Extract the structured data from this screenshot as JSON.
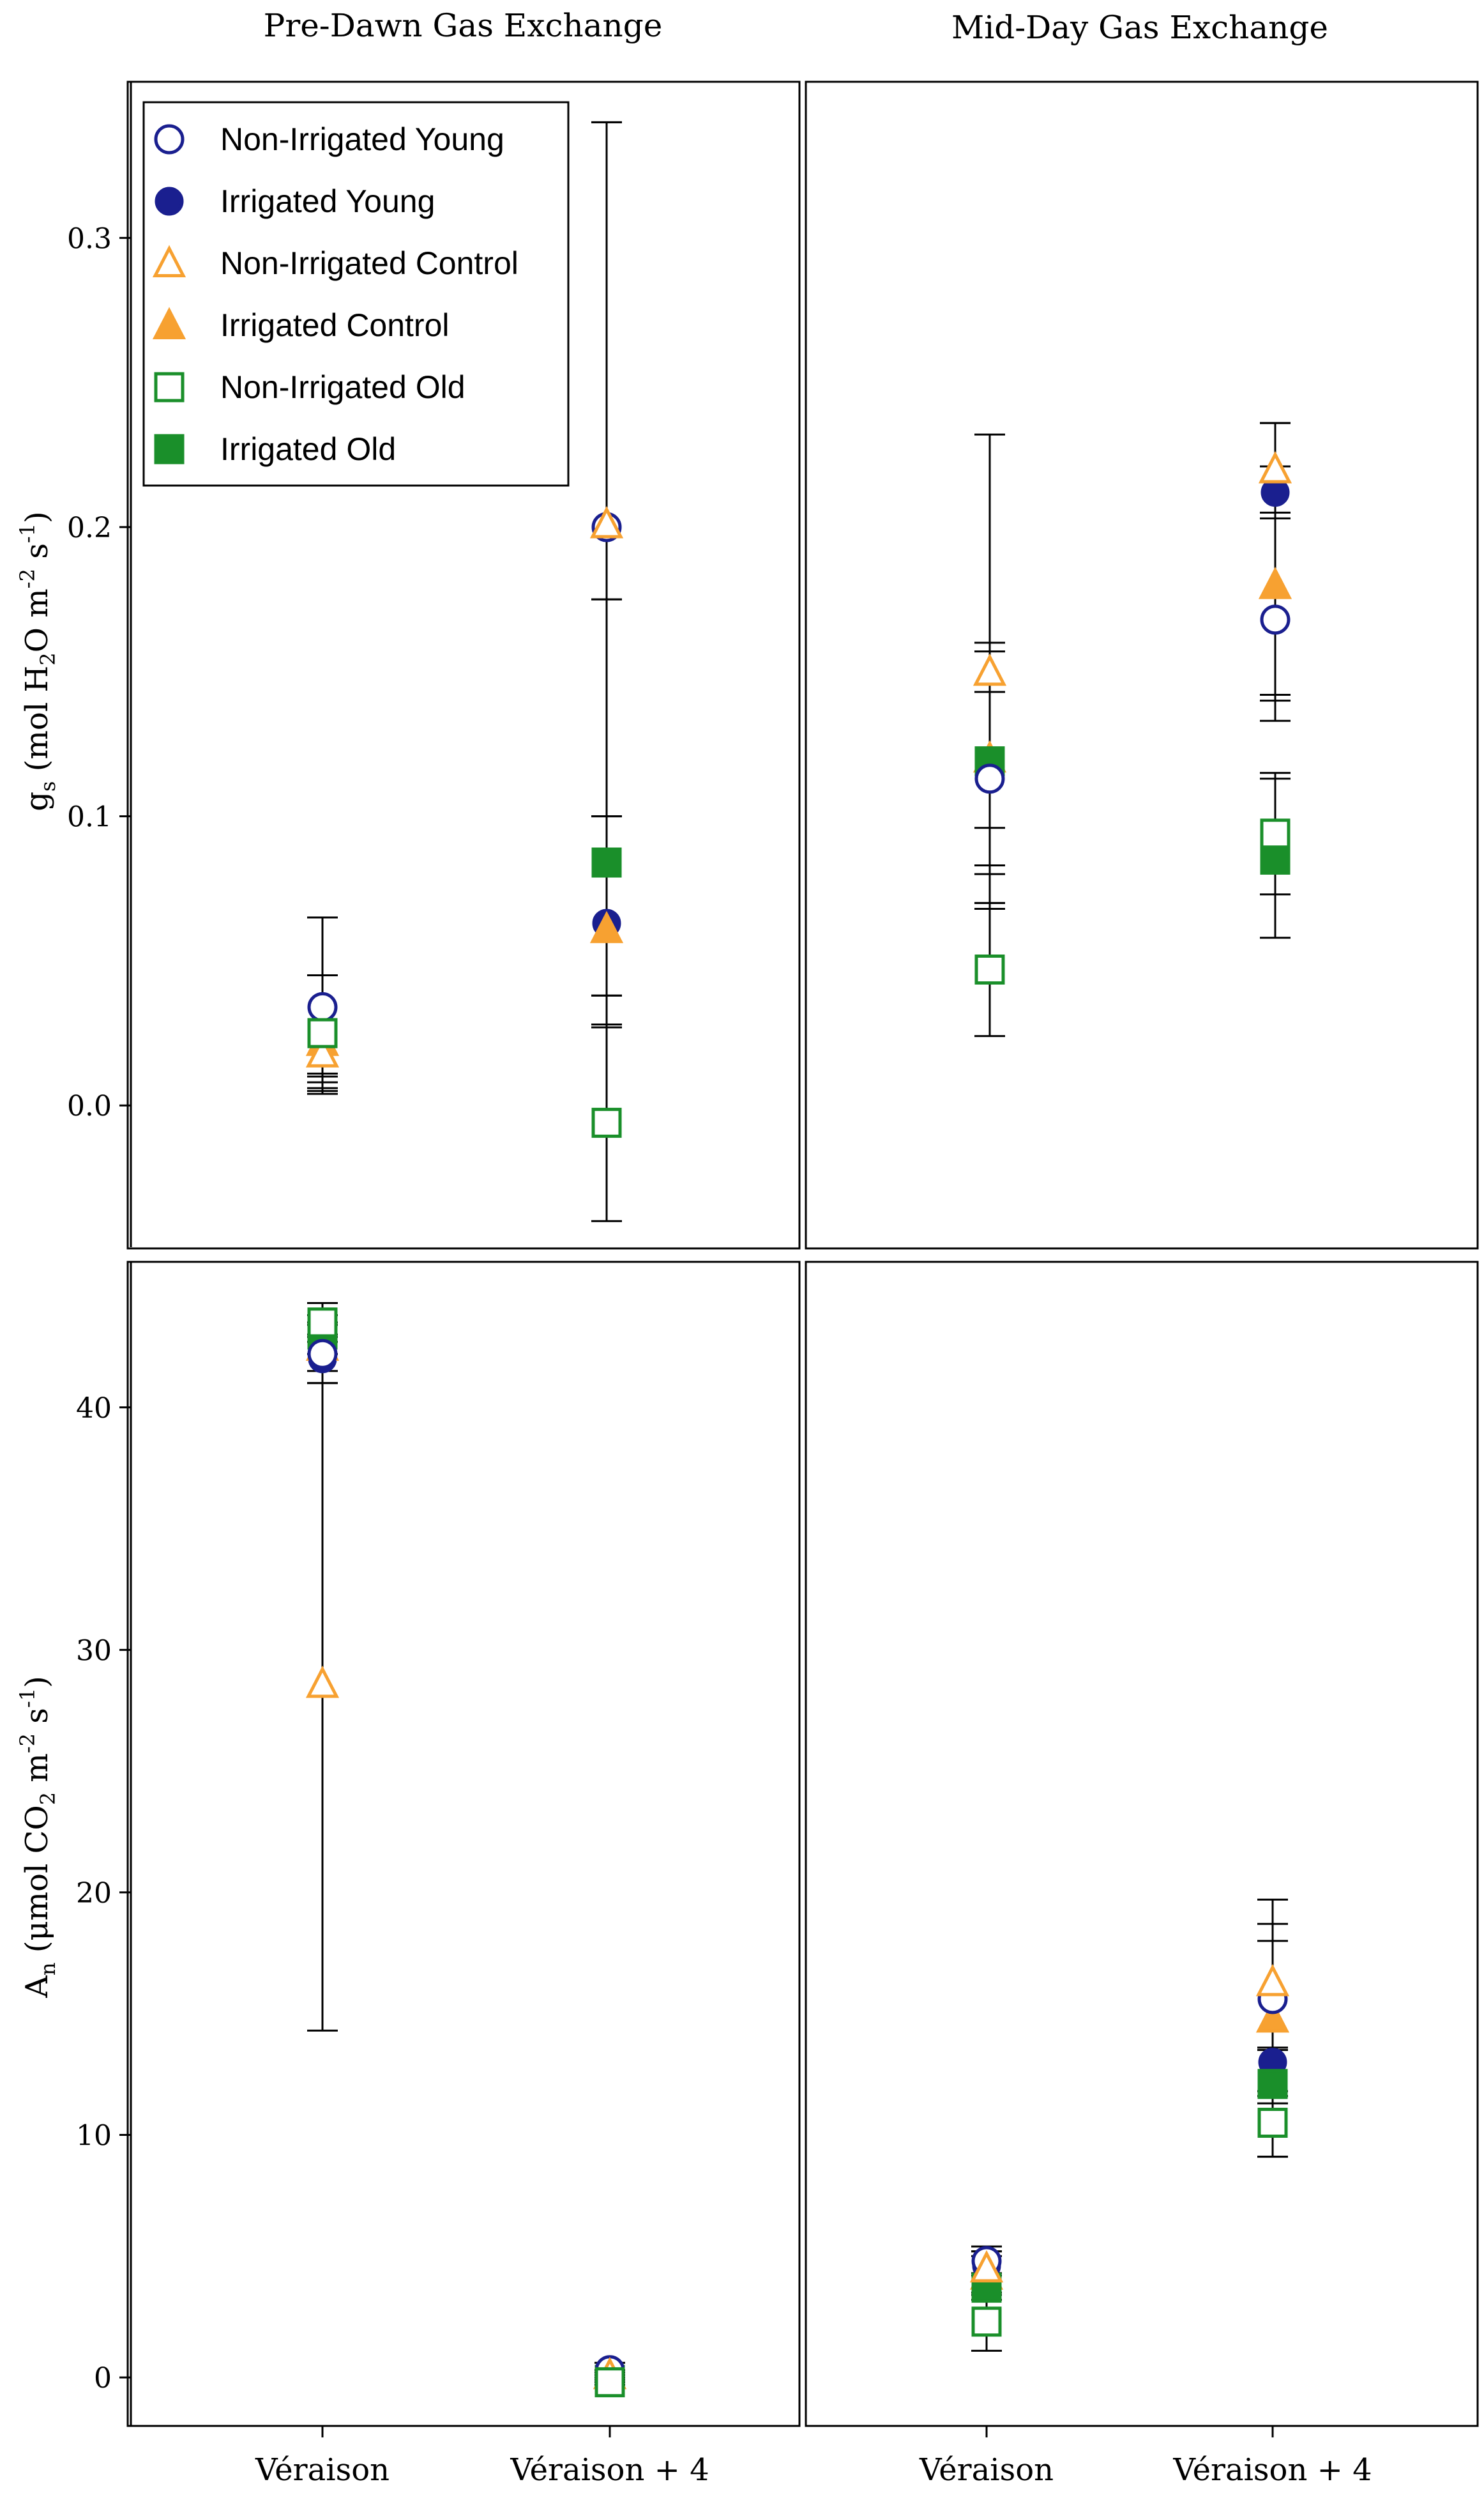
{
  "figure": {
    "col_titles": [
      "Pre-Dawn Gas Exchange",
      "Mid-Day Gas Exchange"
    ],
    "ylabels": {
      "gs": {
        "main": "g",
        "sub": "s",
        "unit_a": " (mol H",
        "sub2": "2",
        "unit_b": "O m",
        "sup1": "-2",
        "unit_c": " s",
        "sup2": "-1",
        "close": ")"
      },
      "an": {
        "main": "A",
        "sub": "n",
        "unit_a": " (μmol CO",
        "sub2": "2",
        "unit_b": " m",
        "sup1": "-2",
        "unit_c": " s",
        "sup2": "-1",
        "close": ")"
      }
    },
    "colors": {
      "young": "#1a1f8f",
      "control": "#f7a131",
      "old": "#1a8f2a",
      "error": "#000000",
      "axis": "#000000"
    }
  },
  "chart_data": [
    {
      "id": "predawn-gs",
      "type": "scatter",
      "title": "Pre-Dawn Gas Exchange",
      "ylabel": "gs (mol H2O m-2 s-1)",
      "categories": [
        "Véraison",
        "Véraison + 4"
      ],
      "yticks": [
        0.0,
        0.1,
        0.2,
        0.3
      ],
      "ytick_labels": [
        "0.0",
        "0.1",
        "0.2",
        "0.3"
      ],
      "ylim": [
        -0.049,
        0.354
      ],
      "legend": "top-left",
      "series": [
        {
          "name": "Non-Irrigated Young",
          "group": "young",
          "filled": false,
          "marker": "circle",
          "values": [
            0.034,
            0.2
          ],
          "err_low": [
            0.011,
            0.028
          ],
          "err_high": [
            0.045,
            0.34
          ]
        },
        {
          "name": "Irrigated Young",
          "group": "young",
          "filled": true,
          "marker": "circle",
          "values": [
            0.025,
            0.063
          ],
          "err_low": [
            0.005,
            0.038
          ],
          "err_high": [
            0.045,
            0.1
          ]
        },
        {
          "name": "Non-Irrigated Control",
          "group": "control",
          "filled": false,
          "marker": "triangle",
          "values": [
            0.018,
            0.201
          ],
          "err_low": [
            0.004,
            0.028
          ],
          "err_high": [
            0.065,
            0.34
          ]
        },
        {
          "name": "Irrigated Control",
          "group": "control",
          "filled": true,
          "marker": "triangle",
          "values": [
            0.022,
            0.061
          ],
          "err_low": [
            0.006,
            0.038
          ],
          "err_high": [
            0.045,
            0.1
          ]
        },
        {
          "name": "Non-Irrigated Old",
          "group": "old",
          "filled": false,
          "marker": "square",
          "values": [
            0.025,
            -0.006
          ],
          "err_low": [
            0.008,
            -0.04
          ],
          "err_high": [
            0.045,
            0.175
          ]
        },
        {
          "name": "Irrigated Old",
          "group": "old",
          "filled": true,
          "marker": "square",
          "values": [
            0.025,
            0.084
          ],
          "err_low": [
            0.01,
            0.027
          ],
          "err_high": [
            0.045,
            0.175
          ]
        }
      ]
    },
    {
      "id": "midday-gs",
      "type": "scatter",
      "title": "Mid-Day Gas Exchange",
      "ylabel": "gs (mol H2O m-2 s-1)",
      "categories": [
        "Véraison",
        "Véraison + 4"
      ],
      "ylim": [
        -0.049,
        0.354
      ],
      "series": [
        {
          "name": "Non-Irrigated Young",
          "group": "young",
          "filled": false,
          "marker": "circle",
          "values": [
            0.113,
            0.168
          ],
          "err_low": [
            0.07,
            0.133
          ],
          "err_high": [
            0.16,
            0.205
          ]
        },
        {
          "name": "Irrigated Young",
          "group": "young",
          "filled": true,
          "marker": "circle",
          "values": [
            0.118,
            0.212
          ],
          "err_low": [
            0.08,
            0.142
          ],
          "err_high": [
            0.16,
            0.236
          ]
        },
        {
          "name": "Non-Irrigated Control",
          "group": "control",
          "filled": false,
          "marker": "triangle",
          "values": [
            0.15,
            0.22
          ],
          "err_low": [
            0.068,
            0.203
          ],
          "err_high": [
            0.232,
            0.236
          ]
        },
        {
          "name": "Irrigated Control",
          "group": "control",
          "filled": true,
          "marker": "triangle",
          "values": [
            0.12,
            0.18
          ],
          "err_low": [
            0.083,
            0.14
          ],
          "err_high": [
            0.157,
            0.221
          ]
        },
        {
          "name": "Non-Irrigated Old",
          "group": "old",
          "filled": false,
          "marker": "square",
          "values": [
            0.047,
            0.094
          ],
          "err_low": [
            0.024,
            0.073
          ],
          "err_high": [
            0.07,
            0.115
          ]
        },
        {
          "name": "Irrigated Old",
          "group": "old",
          "filled": true,
          "marker": "square",
          "values": [
            0.119,
            0.085
          ],
          "err_low": [
            0.096,
            0.058
          ],
          "err_high": [
            0.143,
            0.113
          ]
        }
      ]
    },
    {
      "id": "predawn-an",
      "type": "scatter",
      "title": "",
      "ylabel": "An (μmol CO2 m-2 s-1)",
      "categories": [
        "Véraison",
        "Véraison + 4"
      ],
      "yticks": [
        0,
        10,
        20,
        30,
        40
      ],
      "ytick_labels": [
        "0",
        "10",
        "20",
        "30",
        "40"
      ],
      "ylim": [
        -2.0,
        46.0
      ],
      "series": [
        {
          "name": "Non-Irrigated Young",
          "group": "young",
          "filled": false,
          "marker": "circle",
          "values": [
            42.2,
            0.3
          ],
          "err_low": [
            41.0,
            0.0
          ],
          "err_high": [
            43.4,
            0.6
          ]
        },
        {
          "name": "Irrigated Young",
          "group": "young",
          "filled": true,
          "marker": "circle",
          "values": [
            42.0,
            0.0
          ],
          "err_low": [
            41.0,
            -0.2
          ],
          "err_high": [
            43.0,
            0.2
          ]
        },
        {
          "name": "Non-Irrigated Control",
          "group": "control",
          "filled": false,
          "marker": "triangle",
          "values": [
            28.6,
            0.1
          ],
          "err_low": [
            14.3,
            -0.1
          ],
          "err_high": [
            42.9,
            0.3
          ]
        },
        {
          "name": "Irrigated Control",
          "group": "control",
          "filled": true,
          "marker": "triangle",
          "values": [
            42.5,
            0.1
          ],
          "err_low": [
            41.5,
            -0.1
          ],
          "err_high": [
            43.5,
            0.3
          ]
        },
        {
          "name": "Non-Irrigated Old",
          "group": "old",
          "filled": false,
          "marker": "square",
          "values": [
            43.5,
            -0.2
          ],
          "err_low": [
            42.7,
            -0.4
          ],
          "err_high": [
            44.3,
            0.0
          ]
        },
        {
          "name": "Irrigated Old",
          "group": "old",
          "filled": true,
          "marker": "square",
          "values": [
            43.0,
            -0.1
          ],
          "err_low": [
            42.2,
            -0.3
          ],
          "err_high": [
            43.8,
            0.1
          ]
        }
      ]
    },
    {
      "id": "midday-an",
      "type": "scatter",
      "title": "",
      "ylabel": "An (μmol CO2 m-2 s-1)",
      "categories": [
        "Véraison",
        "Véraison + 4"
      ],
      "ylim": [
        -2.0,
        46.0
      ],
      "series": [
        {
          "name": "Non-Irrigated Young",
          "group": "young",
          "filled": false,
          "marker": "circle",
          "values": [
            4.8,
            15.6
          ],
          "err_low": [
            4.2,
            11.6
          ],
          "err_high": [
            5.4,
            19.7
          ]
        },
        {
          "name": "Irrigated Young",
          "group": "young",
          "filled": true,
          "marker": "circle",
          "values": [
            4.6,
            13.0
          ],
          "err_low": [
            4.0,
            11.8
          ],
          "err_high": [
            5.2,
            13.6
          ]
        },
        {
          "name": "Non-Irrigated Control",
          "group": "control",
          "filled": false,
          "marker": "triangle",
          "values": [
            4.5,
            16.3
          ],
          "err_low": [
            3.7,
            11.3
          ],
          "err_high": [
            5.2,
            18.7
          ]
        },
        {
          "name": "Irrigated Control",
          "group": "control",
          "filled": true,
          "marker": "triangle",
          "values": [
            4.2,
            14.8
          ],
          "err_low": [
            3.4,
            11.6
          ],
          "err_high": [
            5.0,
            18.0
          ]
        },
        {
          "name": "Non-Irrigated Old",
          "group": "old",
          "filled": false,
          "marker": "square",
          "values": [
            2.3,
            10.5
          ],
          "err_low": [
            1.1,
            9.1
          ],
          "err_high": [
            3.5,
            11.8
          ]
        },
        {
          "name": "Irrigated Old",
          "group": "old",
          "filled": true,
          "marker": "square",
          "values": [
            3.7,
            12.1
          ],
          "err_low": [
            3.2,
            9.1
          ],
          "err_high": [
            4.3,
            13.5
          ]
        }
      ]
    }
  ]
}
